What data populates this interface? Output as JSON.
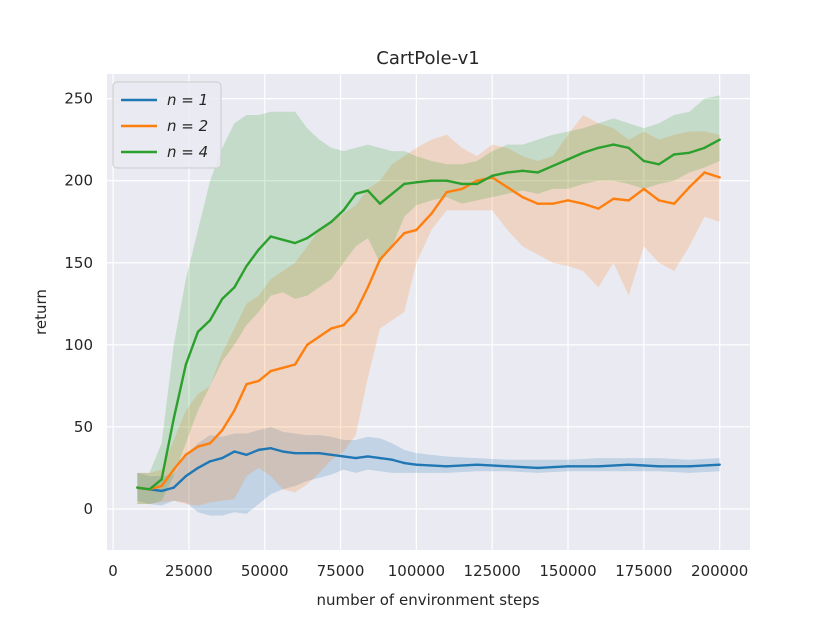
{
  "chart_data": {
    "type": "line",
    "title": "CartPole-v1",
    "xlabel": "number of environment steps",
    "ylabel": "return",
    "xlim": [
      -2000,
      210000
    ],
    "ylim": [
      -25,
      265
    ],
    "xticks": [
      0,
      25000,
      50000,
      75000,
      100000,
      125000,
      150000,
      175000,
      200000
    ],
    "yticks": [
      0,
      50,
      100,
      150,
      200,
      250
    ],
    "grid": true,
    "legend_position": "top-left",
    "series": [
      {
        "name": "n = 1",
        "color": "#1f77b4",
        "x": [
          8000,
          12000,
          16000,
          20000,
          24000,
          28000,
          32000,
          36000,
          40000,
          44000,
          48000,
          52000,
          56000,
          60000,
          64000,
          68000,
          72000,
          76000,
          80000,
          84000,
          88000,
          92000,
          96000,
          100000,
          110000,
          120000,
          130000,
          140000,
          150000,
          160000,
          170000,
          180000,
          190000,
          200000
        ],
        "mean": [
          13,
          12,
          11,
          13,
          20,
          25,
          29,
          31,
          35,
          33,
          36,
          37,
          35,
          34,
          34,
          34,
          33,
          32,
          31,
          32,
          31,
          30,
          28,
          27,
          26,
          27,
          26,
          25,
          26,
          26,
          27,
          26,
          26,
          27
        ],
        "lower": [
          5,
          3,
          2,
          5,
          4,
          -2,
          -4,
          -4,
          -2,
          -3,
          3,
          9,
          12,
          14,
          17,
          19,
          21,
          24,
          22,
          24,
          23,
          22,
          22,
          22,
          22,
          23,
          23,
          22,
          23,
          23,
          23,
          23,
          22,
          23
        ],
        "upper": [
          22,
          20,
          20,
          21,
          33,
          40,
          45,
          44,
          46,
          46,
          48,
          50,
          47,
          46,
          45,
          45,
          44,
          42,
          42,
          44,
          43,
          40,
          36,
          34,
          32,
          31,
          30,
          30,
          30,
          31,
          31,
          31,
          30,
          31
        ]
      },
      {
        "name": "n = 2",
        "color": "#ff7f0e",
        "x": [
          8000,
          12000,
          16000,
          20000,
          24000,
          28000,
          32000,
          36000,
          40000,
          44000,
          48000,
          52000,
          56000,
          60000,
          64000,
          68000,
          72000,
          76000,
          80000,
          84000,
          88000,
          92000,
          96000,
          100000,
          105000,
          110000,
          115000,
          120000,
          125000,
          130000,
          135000,
          140000,
          145000,
          150000,
          155000,
          160000,
          165000,
          170000,
          175000,
          180000,
          185000,
          190000,
          195000,
          200000
        ],
        "mean": [
          13,
          12,
          14,
          24,
          33,
          38,
          40,
          48,
          60,
          76,
          78,
          84,
          86,
          88,
          100,
          105,
          110,
          112,
          120,
          135,
          152,
          160,
          168,
          170,
          180,
          193,
          195,
          200,
          202,
          196,
          190,
          186,
          186,
          188,
          186,
          183,
          189,
          188,
          195,
          188,
          186,
          196,
          205,
          202
        ],
        "lower": [
          3,
          3,
          4,
          5,
          3,
          2,
          4,
          5,
          6,
          20,
          25,
          20,
          12,
          10,
          15,
          22,
          30,
          35,
          45,
          80,
          110,
          115,
          120,
          150,
          170,
          182,
          182,
          182,
          182,
          170,
          160,
          155,
          150,
          148,
          145,
          135,
          150,
          130,
          160,
          150,
          145,
          160,
          178,
          175
        ],
        "upper": [
          22,
          22,
          24,
          42,
          60,
          70,
          75,
          95,
          110,
          125,
          130,
          140,
          145,
          150,
          160,
          170,
          175,
          180,
          185,
          195,
          200,
          210,
          215,
          220,
          225,
          228,
          220,
          215,
          222,
          220,
          215,
          212,
          215,
          228,
          240,
          235,
          232,
          225,
          230,
          225,
          228,
          230,
          230,
          228
        ]
      },
      {
        "name": "n = 4",
        "color": "#2ca02c",
        "x": [
          8000,
          12000,
          16000,
          20000,
          24000,
          28000,
          32000,
          36000,
          40000,
          44000,
          48000,
          52000,
          56000,
          60000,
          64000,
          68000,
          72000,
          76000,
          80000,
          84000,
          88000,
          92000,
          96000,
          100000,
          105000,
          110000,
          115000,
          120000,
          125000,
          130000,
          135000,
          140000,
          145000,
          150000,
          155000,
          160000,
          165000,
          170000,
          175000,
          180000,
          185000,
          190000,
          195000,
          200000
        ],
        "mean": [
          13,
          12,
          18,
          55,
          88,
          108,
          115,
          128,
          135,
          148,
          158,
          166,
          164,
          162,
          165,
          170,
          175,
          182,
          192,
          194,
          186,
          192,
          198,
          199,
          200,
          200,
          198,
          198,
          203,
          205,
          206,
          205,
          209,
          213,
          217,
          220,
          222,
          220,
          212,
          210,
          216,
          217,
          220,
          225
        ],
        "lower": [
          3,
          3,
          5,
          20,
          40,
          60,
          75,
          90,
          100,
          112,
          120,
          130,
          132,
          128,
          130,
          135,
          140,
          150,
          160,
          165,
          150,
          160,
          178,
          185,
          188,
          190,
          186,
          188,
          190,
          192,
          194,
          192,
          195,
          195,
          198,
          200,
          200,
          198,
          195,
          198,
          200,
          205,
          208,
          212
        ],
        "upper": [
          22,
          22,
          40,
          100,
          140,
          170,
          200,
          220,
          235,
          240,
          240,
          242,
          242,
          242,
          232,
          225,
          220,
          218,
          220,
          222,
          220,
          218,
          218,
          215,
          212,
          210,
          210,
          212,
          218,
          222,
          222,
          225,
          228,
          230,
          232,
          235,
          238,
          235,
          232,
          235,
          240,
          242,
          250,
          252
        ]
      }
    ]
  }
}
